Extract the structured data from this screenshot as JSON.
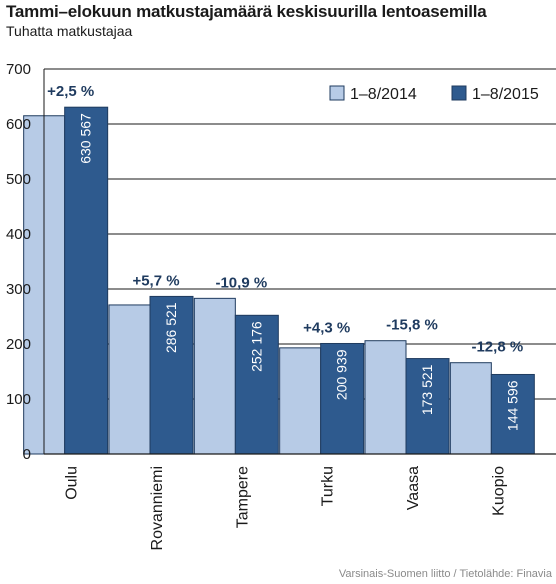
{
  "title": "Tammi–elokuun matkustajamäärä keskisuurilla lentoasemilla",
  "subtitle": "Tuhatta matkustajaa",
  "source": "Varsinais-Suomen liitto / Tietolähde: Finavia",
  "colors": {
    "series_2014": "#b7cbe6",
    "series_2015": "#2e5a8e",
    "bar_stroke": "#1f3b5f",
    "axis": "#1a1a1a",
    "grid": "#1a1a1a"
  },
  "chart_data": {
    "type": "bar",
    "categories": [
      "Oulu",
      "Rovanniemi",
      "Tampere",
      "Turku",
      "Vaasa",
      "Kuopio"
    ],
    "series": [
      {
        "name": "1–8/2014",
        "values": [
          615,
          271,
          283,
          193,
          206,
          166
        ]
      },
      {
        "name": "1–8/2015",
        "values": [
          630.567,
          286.521,
          252.176,
          200.939,
          173.521,
          144.596
        ]
      }
    ],
    "value_labels": [
      "630 567",
      "286 521",
      "252 176",
      "200 939",
      "173 521",
      "144 596"
    ],
    "change_labels": [
      "+2,5 %",
      "+5,7 %",
      "-10,9 %",
      "+4,3 %",
      "-15,8 %",
      "-12,8 %"
    ],
    "ylim": [
      0,
      700
    ],
    "yticks": [
      0,
      100,
      200,
      300,
      400,
      500,
      600,
      700
    ],
    "grid": true,
    "legend_position": "top-right"
  }
}
